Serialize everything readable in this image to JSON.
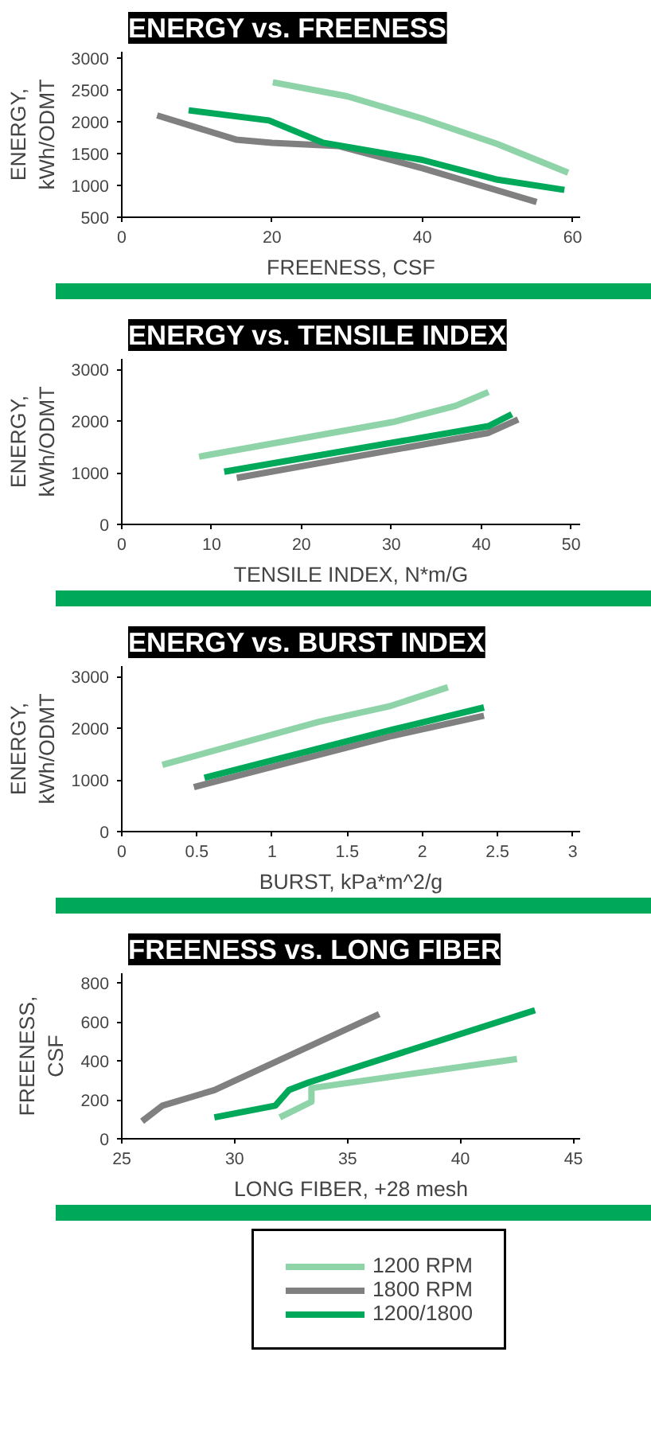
{
  "chart_data": [
    {
      "type": "line",
      "title": "ENERGY vs. FREENESS",
      "xlabel": "FREENESS, CSF",
      "ylabel": "ENERGY,\nkWh/ODMT",
      "xlim": [
        0,
        61
      ],
      "xticks": [
        0,
        20,
        40,
        60
      ],
      "ylim": [
        500,
        3100
      ],
      "yticks": [
        500,
        1000,
        1500,
        2000,
        2500,
        3000
      ],
      "series": [
        {
          "color": "#8fd4a8",
          "x": [
            20.1,
            30,
            40,
            50,
            59.4
          ],
          "values": [
            2620,
            2400,
            2050,
            1650,
            1200
          ]
        },
        {
          "color": "#808080",
          "x": [
            4.7,
            15.2,
            20,
            28.8,
            40,
            55.2
          ],
          "values": [
            2100,
            1720,
            1670,
            1620,
            1270,
            740
          ]
        },
        {
          "color": "#00a859",
          "x": [
            8.9,
            19.6,
            26.8,
            40,
            50,
            58.9
          ],
          "values": [
            2180,
            2020,
            1670,
            1400,
            1090,
            930
          ]
        }
      ]
    },
    {
      "type": "line",
      "title": "ENERGY vs. TENSILE INDEX",
      "xlabel": "TENSILE INDEX, N*m/G",
      "ylabel": "ENERGY,\nkWh/ODMT",
      "xlim": [
        0,
        51
      ],
      "xticks": [
        0,
        10,
        20,
        30,
        40,
        50
      ],
      "ylim": [
        0,
        3200
      ],
      "yticks": [
        0,
        1000,
        2000,
        3000
      ],
      "series": [
        {
          "color": "#8fd4a8",
          "x": [
            8.6,
            30.2,
            37.1,
            40.8
          ],
          "values": [
            1310,
            1980,
            2290,
            2560
          ]
        },
        {
          "color": "#808080",
          "x": [
            12.8,
            40.8,
            44.1
          ],
          "values": [
            900,
            1770,
            2030
          ]
        },
        {
          "color": "#00a859",
          "x": [
            11.4,
            40.8,
            43.4
          ],
          "values": [
            1020,
            1900,
            2130
          ]
        }
      ]
    },
    {
      "type": "line",
      "title": "ENERGY vs. BURST INDEX",
      "xlabel": "BURST, kPa*m^2/g",
      "ylabel": "ENERGY,\nkWh/ODMT",
      "xlim": [
        0,
        3.05
      ],
      "xticks": [
        0,
        0.5,
        1,
        1.5,
        2,
        2.5,
        3
      ],
      "ylim": [
        0,
        3200
      ],
      "yticks": [
        0,
        1000,
        2000,
        3000
      ],
      "series": [
        {
          "color": "#8fd4a8",
          "x": [
            0.27,
            1.31,
            1.79,
            2.17
          ],
          "values": [
            1290,
            2120,
            2430,
            2790
          ]
        },
        {
          "color": "#808080",
          "x": [
            0.48,
            1.8,
            2.41
          ],
          "values": [
            860,
            1850,
            2240
          ]
        },
        {
          "color": "#00a859",
          "x": [
            0.55,
            1.8,
            2.41
          ],
          "values": [
            1040,
            1970,
            2400
          ]
        }
      ]
    },
    {
      "type": "line",
      "title": "FREENESS vs. LONG FIBER",
      "xlabel": "LONG FIBER, +28 mesh",
      "ylabel": "FREENESS,\nCSF",
      "xlim": [
        25,
        45.3
      ],
      "xticks": [
        25,
        30,
        35,
        40,
        45
      ],
      "ylim": [
        0,
        850
      ],
      "yticks": [
        0,
        200,
        400,
        600,
        800
      ],
      "legend": "bottom",
      "series": [
        {
          "name": "1200 RPM",
          "color": "#8fd4a8",
          "x": [
            32.0,
            33.4,
            33.4,
            42.5
          ],
          "values": [
            110,
            190,
            260,
            410
          ]
        },
        {
          "name": "1800 RPM",
          "color": "#808080",
          "x": [
            25.9,
            26.8,
            29.1,
            36.4
          ],
          "values": [
            90,
            170,
            250,
            640
          ]
        },
        {
          "name": "1200/1800",
          "color": "#00a859",
          "x": [
            29.1,
            31.8,
            32.4,
            33.3,
            43.3
          ],
          "values": [
            110,
            170,
            250,
            290,
            660
          ]
        }
      ]
    }
  ]
}
